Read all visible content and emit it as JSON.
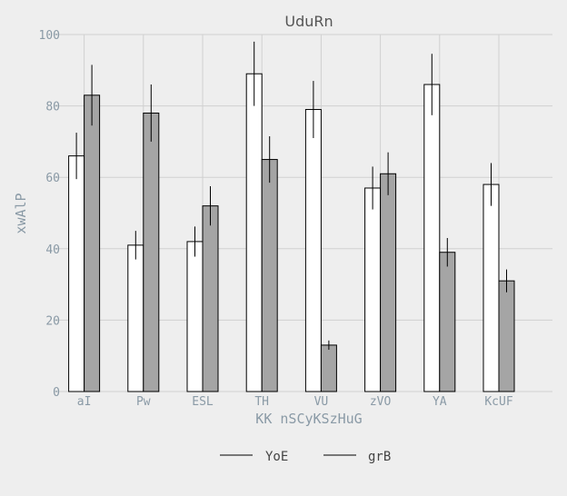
{
  "chart_data": {
    "type": "bar",
    "title": "UduRn",
    "xlabel": "KK nSCyKSzHuG",
    "ylabel": "xwAlP",
    "ylim": [
      0,
      100
    ],
    "yticks": [
      0,
      20,
      40,
      60,
      80,
      100
    ],
    "grid": true,
    "legend": "bottom",
    "categories": [
      "aI",
      "Pw",
      "ESL",
      "TH",
      "VU",
      "zVO",
      "YA",
      "KcUF"
    ],
    "series": [
      {
        "name": "YoE",
        "color": "#ffffff",
        "values": [
          66,
          41,
          42,
          89,
          79,
          57,
          86,
          58
        ],
        "errors": [
          6.5,
          4,
          4.2,
          9,
          8,
          6,
          8.6,
          6
        ]
      },
      {
        "name": "grB",
        "color": "#a5a5a5",
        "values": [
          83,
          78,
          52,
          65,
          13,
          61,
          39,
          31
        ],
        "errors": [
          8.5,
          8,
          5.5,
          6.5,
          1.3,
          6,
          4,
          3.2
        ]
      }
    ]
  }
}
